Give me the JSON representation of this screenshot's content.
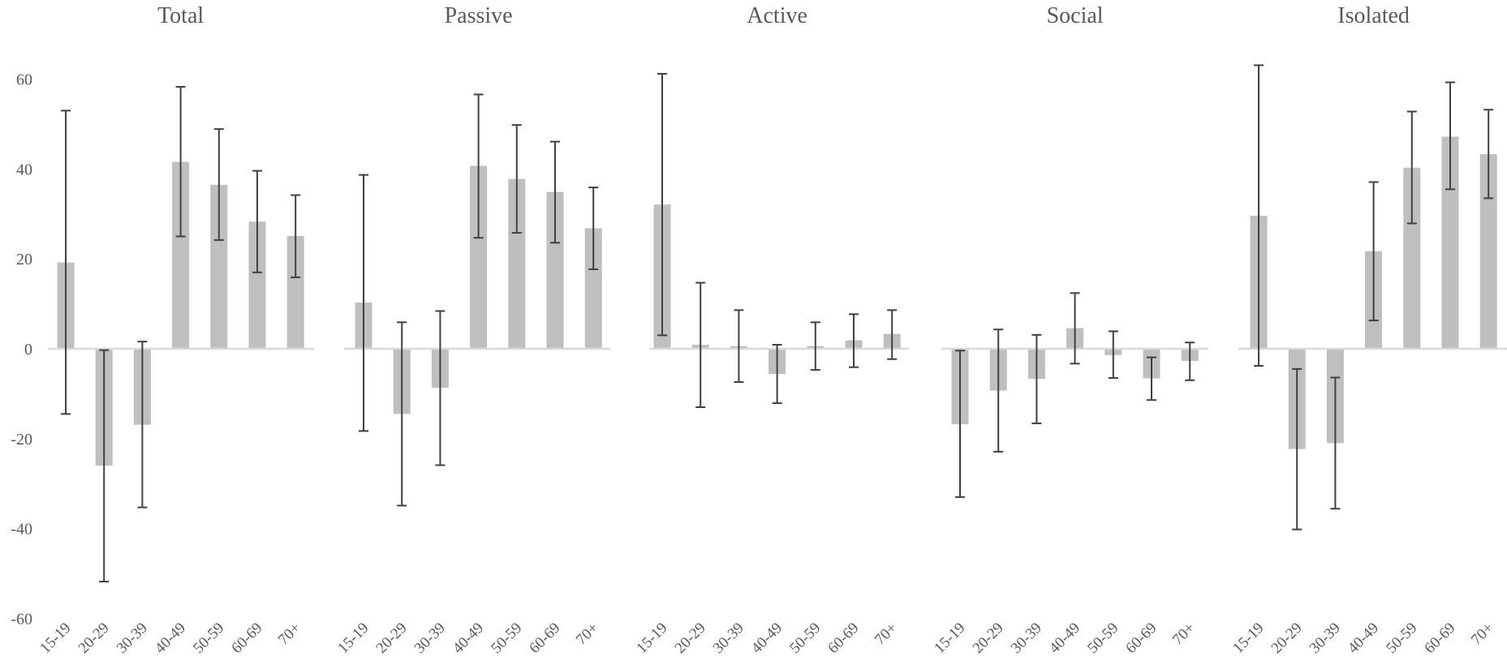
{
  "chart_data": {
    "type": "bar",
    "categories": [
      "15-19",
      "20-29",
      "30-39",
      "40-49",
      "50-59",
      "60-69",
      "70+"
    ],
    "ylim": [
      -60,
      60
    ],
    "y_ticks": [
      "60",
      "40",
      "20",
      "0",
      "-20",
      "-40",
      "-60"
    ],
    "y_tick_values": [
      60,
      40,
      20,
      0,
      -20,
      -40,
      -60
    ],
    "grid": false,
    "error_bars": true,
    "colors": {
      "bar": "#bfbfbf",
      "error_bar": "#404040",
      "zero_line": "#d9d9d9",
      "text": "#595959"
    },
    "panels": [
      {
        "title": "Total",
        "values": [
          19.2,
          -26.0,
          -16.9,
          41.6,
          36.5,
          28.3,
          25.1
        ],
        "error_low": [
          -14.5,
          -51.8,
          -35.3,
          25.0,
          24.2,
          17.0,
          15.9
        ],
        "error_high": [
          53.0,
          -0.3,
          1.6,
          58.3,
          48.9,
          39.6,
          34.2
        ]
      },
      {
        "title": "Passive",
        "values": [
          10.3,
          -14.5,
          -8.7,
          40.7,
          37.8,
          34.9,
          26.8
        ],
        "error_low": [
          -18.3,
          -34.9,
          -25.9,
          24.7,
          25.8,
          23.6,
          17.7
        ],
        "error_high": [
          38.7,
          5.9,
          8.4,
          56.6,
          49.8,
          46.1,
          35.9
        ]
      },
      {
        "title": "Active",
        "values": [
          32.1,
          0.9,
          0.6,
          -5.6,
          0.6,
          1.9,
          3.3
        ],
        "error_low": [
          3.0,
          -13.0,
          -7.4,
          -12.1,
          -4.7,
          -4.1,
          -2.3
        ],
        "error_high": [
          61.2,
          14.7,
          8.6,
          0.9,
          5.9,
          7.7,
          8.6
        ]
      },
      {
        "title": "Social",
        "values": [
          -16.8,
          -9.3,
          -6.7,
          4.6,
          -1.4,
          -6.6,
          -2.7
        ],
        "error_low": [
          -33.0,
          -22.9,
          -16.6,
          -3.3,
          -6.5,
          -11.4,
          -7.0
        ],
        "error_high": [
          -0.4,
          4.3,
          3.1,
          12.4,
          3.9,
          -1.9,
          1.4
        ]
      },
      {
        "title": "Isolated",
        "values": [
          29.6,
          -22.3,
          -21.0,
          21.7,
          40.3,
          47.2,
          43.3
        ],
        "error_low": [
          -3.8,
          -40.2,
          -35.6,
          6.3,
          27.9,
          35.5,
          33.5
        ],
        "error_high": [
          63.1,
          -4.5,
          -6.4,
          37.1,
          52.8,
          59.3,
          53.2
        ]
      }
    ]
  }
}
